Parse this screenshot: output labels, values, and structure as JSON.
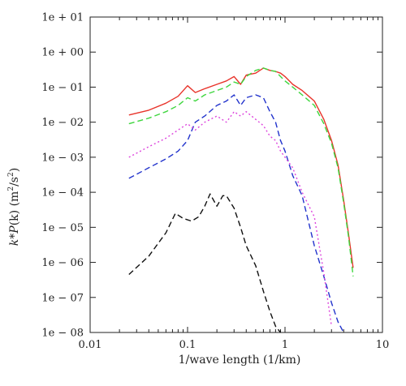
{
  "chart_data": {
    "type": "line",
    "title": "",
    "xlabel": "1/wave length (1/km)",
    "ylabel_parts": {
      "prefix": "k",
      "op": "*",
      "func": "P",
      "paren": "(k)",
      "unit_open": "(m",
      "unit_exp1": "2",
      "unit_mid": "/s",
      "unit_exp2": "2",
      "unit_close": ")"
    },
    "x_scale": "log",
    "y_scale": "log",
    "xlim": [
      0.01,
      10
    ],
    "ylim": [
      1e-08,
      10
    ],
    "grid": false,
    "legend": "none",
    "x_ticks": [
      {
        "value": 0.01,
        "label": "0.01"
      },
      {
        "value": 0.1,
        "label": "0.1"
      },
      {
        "value": 1,
        "label": "1"
      },
      {
        "value": 10,
        "label": "10"
      }
    ],
    "y_ticks": [
      {
        "value": 10,
        "label": "1e + 01"
      },
      {
        "value": 1,
        "label": "1e + 00"
      },
      {
        "value": 0.1,
        "label": "1e − 01"
      },
      {
        "value": 0.01,
        "label": "1e − 02"
      },
      {
        "value": 0.001,
        "label": "1e − 03"
      },
      {
        "value": 0.0001,
        "label": "1e − 04"
      },
      {
        "value": 1e-05,
        "label": "1e − 05"
      },
      {
        "value": 1e-06,
        "label": "1e − 06"
      },
      {
        "value": 1e-07,
        "label": "1e − 07"
      },
      {
        "value": 1e-08,
        "label": "1e − 08"
      }
    ],
    "series": [
      {
        "color": "#e8332a",
        "dash": "solid",
        "x": [
          0.025,
          0.04,
          0.06,
          0.08,
          0.1,
          0.12,
          0.15,
          0.2,
          0.25,
          0.3,
          0.35,
          0.4,
          0.5,
          0.6,
          0.7,
          0.8,
          0.9,
          1.0,
          1.2,
          1.5,
          2.0,
          2.5,
          3.0,
          3.5,
          4.0,
          4.5,
          5.0
        ],
        "y": [
          0.016,
          0.022,
          0.035,
          0.055,
          0.11,
          0.07,
          0.09,
          0.12,
          0.15,
          0.2,
          0.12,
          0.22,
          0.25,
          0.35,
          0.3,
          0.28,
          0.25,
          0.2,
          0.12,
          0.08,
          0.04,
          0.012,
          0.003,
          0.0006,
          6e-05,
          6e-06,
          7e-07
        ]
      },
      {
        "color": "#3dd63d",
        "dash": "dash",
        "x": [
          0.025,
          0.04,
          0.06,
          0.08,
          0.1,
          0.12,
          0.15,
          0.2,
          0.25,
          0.3,
          0.35,
          0.4,
          0.5,
          0.6,
          0.7,
          0.8,
          0.9,
          1.0,
          1.2,
          1.5,
          2.0,
          2.5,
          3.0,
          3.5,
          4.0,
          4.5,
          5.0
        ],
        "y": [
          0.009,
          0.013,
          0.02,
          0.03,
          0.05,
          0.04,
          0.06,
          0.08,
          0.1,
          0.14,
          0.12,
          0.2,
          0.3,
          0.35,
          0.3,
          0.28,
          0.2,
          0.15,
          0.1,
          0.06,
          0.03,
          0.009,
          0.0025,
          0.0005,
          5e-05,
          5e-06,
          4e-07
        ]
      },
      {
        "color": "#2233cc",
        "dash": "dash",
        "x": [
          0.025,
          0.04,
          0.06,
          0.08,
          0.1,
          0.12,
          0.15,
          0.2,
          0.25,
          0.3,
          0.35,
          0.4,
          0.5,
          0.6,
          0.7,
          0.8,
          0.9,
          1.0,
          1.2,
          1.5,
          2.0,
          2.5,
          3.0,
          3.5,
          4.0
        ],
        "y": [
          0.00025,
          0.0005,
          0.0009,
          0.0015,
          0.003,
          0.01,
          0.015,
          0.03,
          0.04,
          0.06,
          0.03,
          0.05,
          0.06,
          0.05,
          0.02,
          0.01,
          0.003,
          0.0015,
          0.0003,
          8e-05,
          3e-06,
          4e-07,
          7e-08,
          2e-08,
          1e-08
        ]
      },
      {
        "color": "#dd44dd",
        "dash": "dot",
        "x": [
          0.025,
          0.04,
          0.06,
          0.08,
          0.1,
          0.12,
          0.15,
          0.2,
          0.25,
          0.3,
          0.35,
          0.4,
          0.5,
          0.6,
          0.7,
          0.8,
          0.9,
          1.0,
          1.2,
          1.5,
          2.0,
          2.5,
          3.0
        ],
        "y": [
          0.001,
          0.002,
          0.0035,
          0.006,
          0.009,
          0.006,
          0.01,
          0.015,
          0.01,
          0.02,
          0.015,
          0.02,
          0.012,
          0.008,
          0.004,
          0.003,
          0.0015,
          0.001,
          0.0005,
          0.0001,
          2e-05,
          5e-07,
          1.5e-08
        ]
      },
      {
        "color": "#111111",
        "dash": "dash",
        "x": [
          0.025,
          0.04,
          0.06,
          0.075,
          0.09,
          0.11,
          0.13,
          0.15,
          0.17,
          0.2,
          0.23,
          0.25,
          0.3,
          0.35,
          0.4,
          0.5,
          0.6,
          0.7,
          0.8,
          0.9
        ],
        "y": [
          4.5e-07,
          1.5e-06,
          7e-06,
          2.5e-05,
          1.8e-05,
          1.5e-05,
          2e-05,
          4e-05,
          9e-05,
          4e-05,
          8e-05,
          8e-05,
          3.5e-05,
          1e-05,
          3e-06,
          8e-07,
          1.5e-07,
          4e-08,
          1.5e-08,
          1e-08
        ]
      }
    ]
  }
}
